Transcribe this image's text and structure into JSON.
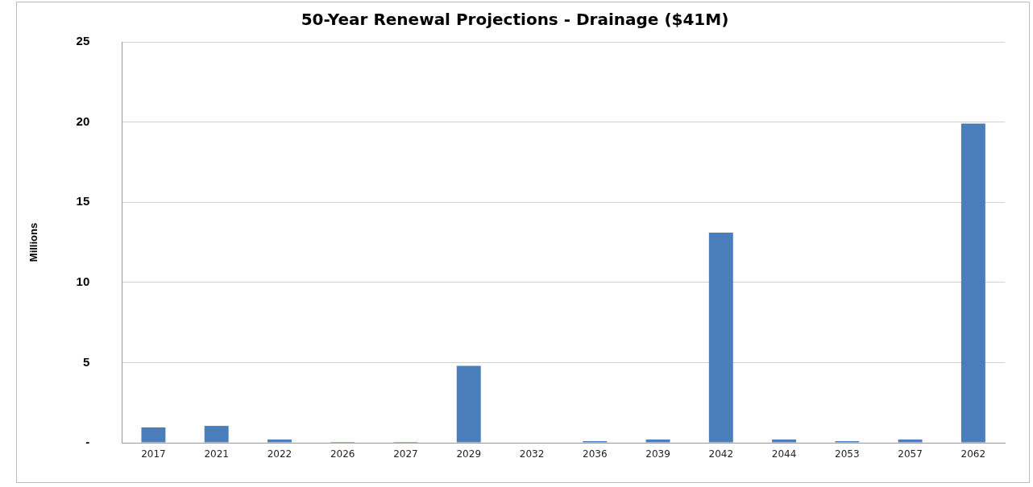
{
  "chart_data": {
    "type": "bar",
    "title": "50-Year Renewal Projections - Drainage ($41M)",
    "ylabel": "Millions",
    "categories": [
      "2017",
      "2021",
      "2022",
      "2026",
      "2027",
      "2029",
      "2032",
      "2036",
      "2039",
      "2042",
      "2044",
      "2053",
      "2057",
      "2062"
    ],
    "values": [
      0.95,
      1.05,
      0.2,
      0.05,
      0.05,
      4.8,
      null,
      0.1,
      0.2,
      13.1,
      0.2,
      0.1,
      0.2,
      19.9
    ],
    "color": "#4a7ebb",
    "ylim": [
      0,
      25
    ],
    "yticks": [
      {
        "value": 0,
        "label": "-"
      },
      5,
      10,
      15,
      20,
      25
    ],
    "grid": "y",
    "legend": false
  }
}
